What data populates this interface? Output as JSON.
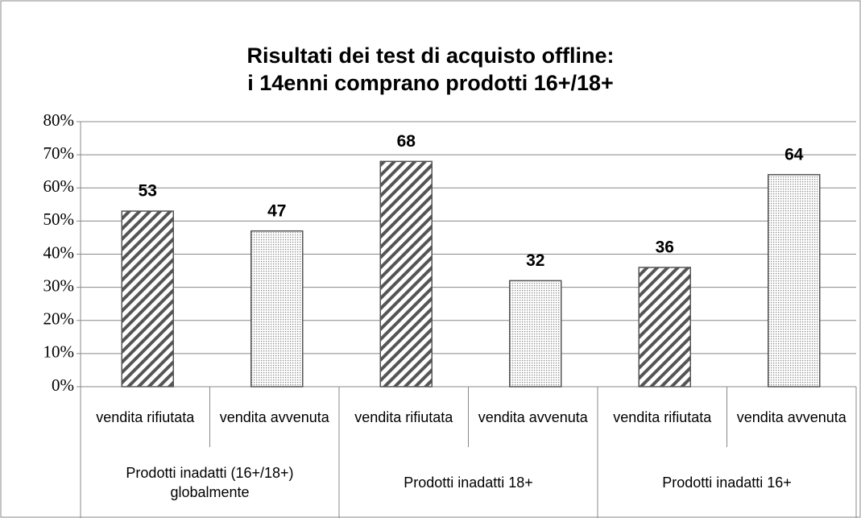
{
  "chart_data": {
    "type": "bar",
    "title": "Risultati dei test di acquisto offline:\ni 14enni comprano prodotti 16+/18+",
    "groups": [
      {
        "name": "Prodotti inadatti (16+/18+) globalmente",
        "categories": [
          "vendita rifiutata",
          "vendita avvenuta"
        ],
        "values": [
          53,
          47
        ]
      },
      {
        "name": "Prodotti inadatti 18+",
        "categories": [
          "vendita rifiutata",
          "vendita avvenuta"
        ],
        "values": [
          68,
          32
        ]
      },
      {
        "name": "Prodotti inadatti 16+",
        "categories": [
          "vendita rifiutata",
          "vendita avvenuta"
        ],
        "values": [
          36,
          64
        ]
      }
    ],
    "patterns": [
      "diagonal-stripes",
      "dots"
    ],
    "color": "#555555",
    "ylim": [
      0,
      80
    ],
    "yticks": [
      {
        "value": 0,
        "label": "0%"
      },
      {
        "value": 10,
        "label": "10%"
      },
      {
        "value": 20,
        "label": "20%"
      },
      {
        "value": 30,
        "label": "30%"
      },
      {
        "value": 40,
        "label": "40%"
      },
      {
        "value": 50,
        "label": "50%"
      },
      {
        "value": 60,
        "label": "60%"
      },
      {
        "value": 70,
        "label": "70%"
      },
      {
        "value": 80,
        "label": "80%"
      }
    ],
    "grid": true
  }
}
